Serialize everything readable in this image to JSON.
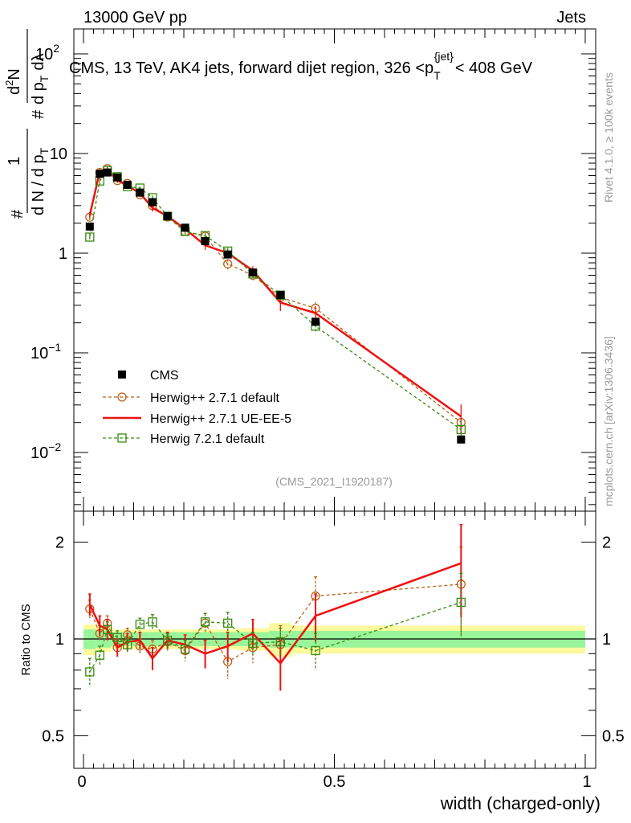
{
  "header": {
    "left": "13000 GeV pp",
    "right": "Jets"
  },
  "title": {
    "main": "CMS, 13 TeV, AK4 jets, forward dijet region, 326 <p",
    "sub": "T",
    "sup": "{jet}",
    "tail": "< 408 GeV"
  },
  "ylabel": {
    "frac_num": "1",
    "frac_den_1": "d N / d p",
    "frac_den_sub": "T",
    "frac_num_2": "d",
    "frac_num_2_sup": "2",
    "frac_num_2_b": "N",
    "frac_den_2": "d p",
    "frac_den_2_sub": "T",
    "frac_den_2_c": "dλ",
    "hash": "#"
  },
  "ratio_ylabel": "Ratio to CMS",
  "xlabel": "width (charged-only)",
  "side_text": {
    "top": "Rivet 4.1.0, ≥ 100k events",
    "bottom": "mcplots.cern.ch [arXiv:1306.3436]"
  },
  "analysis_id": "(CMS_2021_I1920187)",
  "axis_ticks": {
    "x": [
      {
        "value": 0,
        "label": "0"
      },
      {
        "value": 0.5,
        "label": "0.5"
      },
      {
        "value": 1,
        "label": "1"
      }
    ],
    "y_main": [
      {
        "value": 0.01,
        "base": "10",
        "exp": "−2"
      },
      {
        "value": 0.1,
        "base": "10",
        "exp": "−1"
      },
      {
        "value": 1,
        "base": "1",
        "exp": ""
      },
      {
        "value": 10,
        "base": "10",
        "exp": ""
      },
      {
        "value": 100,
        "base": "10",
        "exp": "2"
      }
    ],
    "y_ratio": [
      {
        "value": 0.5,
        "label": "0.5"
      },
      {
        "value": 1,
        "label": "1"
      },
      {
        "value": 2,
        "label": "2"
      }
    ]
  },
  "colors": {
    "cms": "#000000",
    "herwigpp_default": "#b8621a",
    "herwigpp_ueee5": "#ee1111",
    "herwig72": "#3a8a12",
    "band_inner": "#99f599",
    "band_outer": "#fbfa9c"
  },
  "chart_data": {
    "type": "scatter",
    "title": "CMS, 13 TeV, AK4 jets, forward dijet region, 326 < pT{jet} < 408 GeV",
    "xlabel": "width (charged-only)",
    "ylabel": "1/(dN/dpT) d2N/(dpT dlambda)",
    "xlim": [
      0,
      1
    ],
    "main_ylim": [
      0.003,
      200
    ],
    "main_yscale": "log",
    "ratio_ylim": [
      0.4,
      2.4
    ],
    "ratio_yscale": "log",
    "bins": [
      {
        "x": 0.0125,
        "lo": 0.0,
        "hi": 0.025
      },
      {
        "x": 0.0325,
        "lo": 0.025,
        "hi": 0.04
      },
      {
        "x": 0.0475,
        "lo": 0.04,
        "hi": 0.055
      },
      {
        "x": 0.0675,
        "lo": 0.055,
        "hi": 0.08
      },
      {
        "x": 0.0875,
        "lo": 0.08,
        "hi": 0.095
      },
      {
        "x": 0.1125,
        "lo": 0.095,
        "hi": 0.13
      },
      {
        "x": 0.1375,
        "lo": 0.13,
        "hi": 0.145
      },
      {
        "x": 0.1675,
        "lo": 0.145,
        "hi": 0.19
      },
      {
        "x": 0.2025,
        "lo": 0.19,
        "hi": 0.215
      },
      {
        "x": 0.2425,
        "lo": 0.215,
        "hi": 0.27
      },
      {
        "x": 0.2875,
        "lo": 0.27,
        "hi": 0.305
      },
      {
        "x": 0.3375,
        "lo": 0.305,
        "hi": 0.37
      },
      {
        "x": 0.3925,
        "lo": 0.37,
        "hi": 0.415
      },
      {
        "x": 0.4625,
        "lo": 0.415,
        "hi": 0.5
      },
      {
        "x": 0.7525,
        "lo": 0.5,
        "hi": 1.0
      }
    ],
    "data_values": [
      1.85,
      6.25,
      6.45,
      5.75,
      4.85,
      4.05,
      3.25,
      2.35,
      1.8,
      1.32,
      0.97,
      0.64,
      0.38,
      0.205,
      0.0135
    ],
    "data_band_inner": [
      0.07,
      0.06,
      0.06,
      0.05,
      0.05,
      0.05,
      0.05,
      0.05,
      0.05,
      0.05,
      0.05,
      0.05,
      0.06,
      0.06,
      0.06
    ],
    "data_band_outer": [
      0.11,
      0.09,
      0.09,
      0.07,
      0.07,
      0.07,
      0.07,
      0.07,
      0.07,
      0.07,
      0.07,
      0.08,
      0.12,
      0.1,
      0.1
    ],
    "series": [
      {
        "name": "Herwig++ 2.7.1 default",
        "key": "herwigpp_default",
        "style": "dashed",
        "marker": "circle",
        "values": [
          2.3,
          6.45,
          7.05,
          5.35,
          5.0,
          3.85,
          3.0,
          2.3,
          1.65,
          1.48,
          0.78,
          0.6,
          0.36,
          0.28,
          0.02
        ],
        "ratio": [
          1.24,
          1.04,
          1.12,
          0.94,
          1.03,
          0.95,
          0.93,
          0.98,
          0.92,
          1.12,
          0.85,
          0.94,
          0.96,
          1.36,
          1.48
        ],
        "ratio_err": [
          0.08,
          0.06,
          0.06,
          0.05,
          0.05,
          0.05,
          0.06,
          0.06,
          0.07,
          0.08,
          0.1,
          0.1,
          0.14,
          0.2,
          0.45
        ]
      },
      {
        "name": "Herwig++ 2.7.1 UE-EE-5",
        "key": "herwigpp_ueee5",
        "style": "solid",
        "marker": "none",
        "values": [
          2.4,
          6.6,
          6.8,
          5.4,
          4.75,
          4.0,
          2.85,
          2.35,
          1.75,
          1.2,
          1.0,
          0.67,
          0.32,
          0.25,
          0.023
        ],
        "ratio": [
          1.28,
          1.1,
          1.07,
          0.94,
          0.98,
          0.99,
          0.87,
          0.99,
          0.96,
          0.9,
          0.95,
          1.04,
          0.84,
          1.18,
          1.72
        ],
        "ratio_err": [
          0.1,
          0.08,
          0.08,
          0.06,
          0.06,
          0.06,
          0.07,
          0.06,
          0.07,
          0.09,
          0.1,
          0.11,
          0.15,
          0.2,
          0.55
        ]
      },
      {
        "name": "Herwig 7.2.1 default",
        "key": "herwig72",
        "style": "dashed",
        "marker": "square",
        "values": [
          1.45,
          5.3,
          6.75,
          5.85,
          4.65,
          4.5,
          3.6,
          2.35,
          1.65,
          1.5,
          1.05,
          0.62,
          0.38,
          0.185,
          0.017
        ],
        "ratio": [
          0.79,
          0.89,
          1.07,
          1.01,
          0.96,
          1.11,
          1.13,
          0.99,
          0.93,
          1.13,
          1.12,
          0.97,
          0.98,
          0.92,
          1.3
        ],
        "ratio_err": [
          0.08,
          0.06,
          0.06,
          0.05,
          0.05,
          0.05,
          0.06,
          0.05,
          0.06,
          0.07,
          0.09,
          0.08,
          0.1,
          0.12,
          0.3
        ]
      }
    ],
    "legend": [
      "CMS",
      "Herwig++ 2.7.1 default",
      "Herwig++ 2.7.1 UE-EE-5",
      "Herwig 7.2.1 default"
    ],
    "legend_position": "lower-left",
    "grid": false
  }
}
